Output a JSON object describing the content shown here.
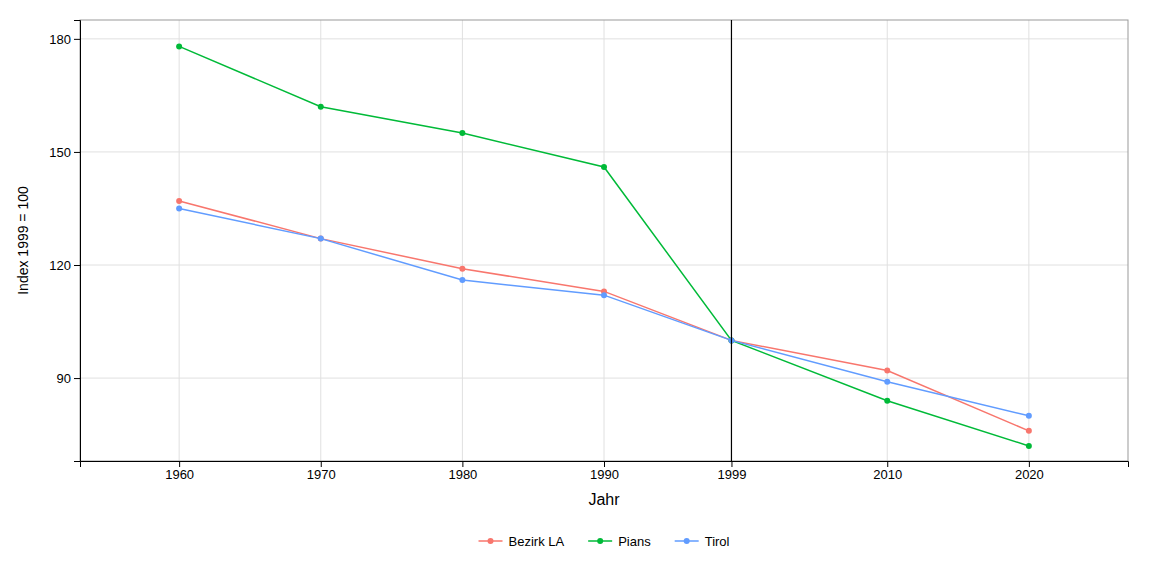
{
  "chart_data": {
    "type": "line",
    "x": [
      1960,
      1970,
      1980,
      1990,
      1999,
      2010,
      2020
    ],
    "series": [
      {
        "name": "Bezirk LA",
        "color": "#F8766D",
        "values": [
          137,
          127,
          119,
          113,
          100,
          92,
          76
        ]
      },
      {
        "name": "Pians",
        "color": "#00BA38",
        "values": [
          178,
          162,
          155,
          146,
          100,
          84,
          72
        ]
      },
      {
        "name": "Tirol",
        "color": "#619CFF",
        "values": [
          135,
          127,
          116,
          112,
          100,
          89,
          80
        ]
      }
    ],
    "xlabel": "Jahr",
    "ylabel": "Index 1999 = 100",
    "vline_x": 1999,
    "xlim": [
      1953,
      2027
    ],
    "ylim": [
      68,
      185
    ],
    "xticks": [
      1960,
      1970,
      1980,
      1990,
      1999,
      2010,
      2020
    ],
    "yticks": [
      90,
      120,
      150,
      180
    ],
    "grid": true,
    "legend": "bottom",
    "marker": "circle"
  }
}
